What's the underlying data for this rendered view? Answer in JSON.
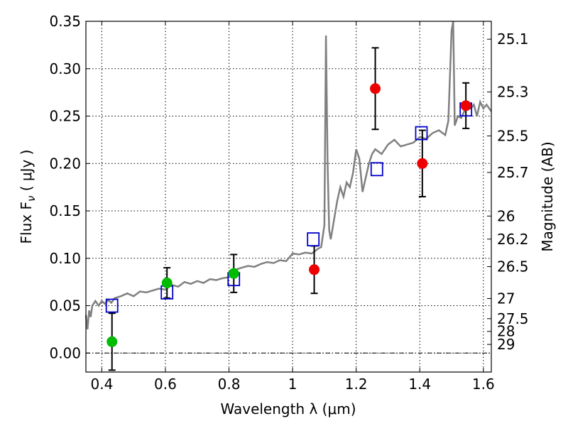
{
  "chart_data": {
    "type": "scatter",
    "xlabel": "Wavelength  λ (μm)",
    "ylabel": "Flux  F",
    "ylabel_subscript": "ν",
    "ylabel_unit": "  ( μJy )",
    "y2label": "Magnitude (AB)",
    "xlim": [
      0.35,
      1.625
    ],
    "ylim": [
      -0.02,
      0.35
    ],
    "grid": true,
    "x_ticks": [
      0.4,
      0.6,
      0.8,
      1.0,
      1.2,
      1.4,
      1.6
    ],
    "x_tick_labels": [
      "0.4",
      "0.6",
      "0.8",
      "1",
      "1.2",
      "1.4",
      "1.6"
    ],
    "y_ticks": [
      0.0,
      0.05,
      0.1,
      0.15,
      0.2,
      0.25,
      0.3,
      0.35
    ],
    "y_tick_labels": [
      "0.00",
      "0.05",
      "0.10",
      "0.15",
      "0.20",
      "0.25",
      "0.30",
      "0.35"
    ],
    "y2_ticks": [
      25.1,
      25.3,
      25.5,
      25.7,
      26,
      26.2,
      26.5,
      27,
      27.5,
      28,
      29
    ],
    "y2_tick_labels": [
      "25.1",
      "25.3",
      "25.5",
      "25.7",
      "26",
      "26.2",
      "26.5",
      "27",
      "27.5",
      "28",
      "29"
    ],
    "colors": {
      "sed": "#808080",
      "model": "#0000cc",
      "green": "#00bb00",
      "red": "#ee0000",
      "error": "#000000"
    },
    "sed_curve": {
      "x": [
        0.35,
        0.355,
        0.36,
        0.365,
        0.37,
        0.38,
        0.39,
        0.4,
        0.41,
        0.42,
        0.43,
        0.44,
        0.46,
        0.48,
        0.5,
        0.52,
        0.54,
        0.56,
        0.58,
        0.6,
        0.62,
        0.64,
        0.66,
        0.68,
        0.7,
        0.72,
        0.74,
        0.76,
        0.78,
        0.8,
        0.82,
        0.84,
        0.86,
        0.88,
        0.9,
        0.92,
        0.94,
        0.96,
        0.98,
        1.0,
        1.02,
        1.04,
        1.06,
        1.08,
        1.09,
        1.1,
        1.105,
        1.11,
        1.115,
        1.12,
        1.125,
        1.13,
        1.14,
        1.15,
        1.16,
        1.17,
        1.18,
        1.19,
        1.2,
        1.21,
        1.22,
        1.23,
        1.24,
        1.25,
        1.26,
        1.28,
        1.3,
        1.32,
        1.34,
        1.36,
        1.38,
        1.4,
        1.42,
        1.44,
        1.46,
        1.48,
        1.49,
        1.5,
        1.505,
        1.51,
        1.515,
        1.52,
        1.53,
        1.54,
        1.55,
        1.56,
        1.57,
        1.58,
        1.59,
        1.6,
        1.61,
        1.625
      ],
      "y": [
        0.04,
        0.025,
        0.045,
        0.038,
        0.05,
        0.055,
        0.05,
        0.055,
        0.052,
        0.056,
        0.053,
        0.058,
        0.06,
        0.063,
        0.06,
        0.065,
        0.064,
        0.066,
        0.068,
        0.067,
        0.072,
        0.07,
        0.075,
        0.073,
        0.076,
        0.074,
        0.078,
        0.077,
        0.079,
        0.08,
        0.088,
        0.09,
        0.092,
        0.091,
        0.094,
        0.096,
        0.095,
        0.098,
        0.097,
        0.105,
        0.104,
        0.106,
        0.105,
        0.11,
        0.112,
        0.135,
        0.335,
        0.2,
        0.13,
        0.12,
        0.13,
        0.14,
        0.16,
        0.175,
        0.165,
        0.18,
        0.175,
        0.19,
        0.215,
        0.205,
        0.17,
        0.185,
        0.2,
        0.21,
        0.215,
        0.21,
        0.22,
        0.225,
        0.218,
        0.22,
        0.222,
        0.228,
        0.226,
        0.232,
        0.235,
        0.23,
        0.245,
        0.34,
        0.35,
        0.24,
        0.245,
        0.25,
        0.248,
        0.255,
        0.26,
        0.258,
        0.262,
        0.25,
        0.265,
        0.258,
        0.262,
        0.255
      ]
    },
    "model_points": {
      "x": [
        0.432,
        0.605,
        0.815,
        1.065,
        1.265,
        1.405,
        1.545
      ],
      "y": [
        0.05,
        0.064,
        0.078,
        0.12,
        0.194,
        0.232,
        0.257
      ]
    },
    "green_points": {
      "x": [
        0.432,
        0.605,
        0.815
      ],
      "y": [
        0.012,
        0.074,
        0.084
      ],
      "yerr": [
        0.03,
        0.016,
        0.02
      ]
    },
    "red_points": {
      "x": [
        1.068,
        1.26,
        1.408,
        1.545
      ],
      "y": [
        0.088,
        0.279,
        0.2,
        0.261
      ],
      "yerr": [
        0.025,
        0.043,
        0.035,
        0.024
      ]
    }
  }
}
